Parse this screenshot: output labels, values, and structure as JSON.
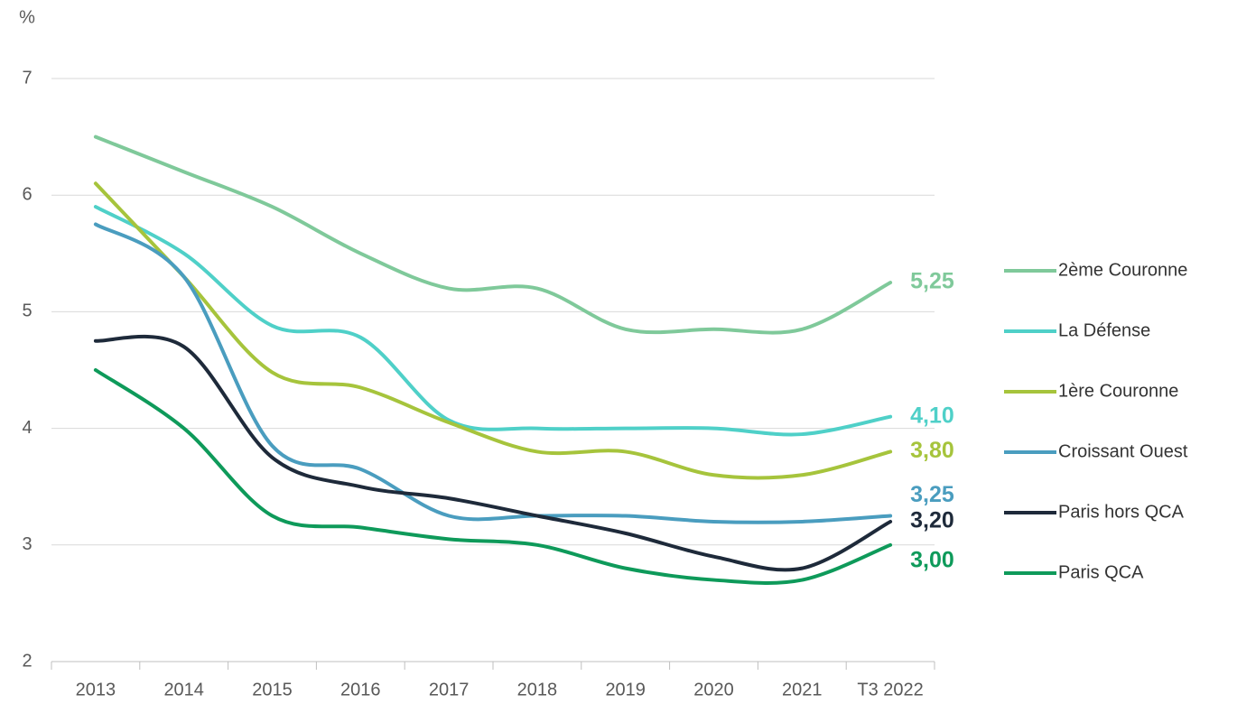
{
  "chart_data": {
    "type": "line",
    "y_unit": "%",
    "categories": [
      "2013",
      "2014",
      "2015",
      "2016",
      "2017",
      "2018",
      "2019",
      "2020",
      "2021",
      "T3 2022"
    ],
    "ylim": [
      2,
      7
    ],
    "yticks": [
      2,
      3,
      4,
      5,
      6,
      7
    ],
    "grid": true,
    "legend": "right",
    "series": [
      {
        "name": "2ème Couronne",
        "color": "#7fc99a",
        "values": [
          6.5,
          6.2,
          5.9,
          5.5,
          5.2,
          5.2,
          4.85,
          4.85,
          4.85,
          5.25
        ],
        "value_labels": [
          null,
          null,
          null,
          null,
          null,
          null,
          null,
          null,
          null,
          "5,25"
        ]
      },
      {
        "name": "La Défense",
        "color": "#4fd0c8",
        "values": [
          5.9,
          5.5,
          4.88,
          4.78,
          4.07,
          4.0,
          4.0,
          4.0,
          3.95,
          4.1
        ],
        "value_labels": [
          null,
          null,
          null,
          null,
          null,
          null,
          null,
          null,
          null,
          "4,10"
        ]
      },
      {
        "name": "1ère Couronne",
        "color": "#a6c43c",
        "values": [
          6.1,
          5.3,
          4.48,
          4.35,
          4.05,
          3.8,
          3.8,
          3.6,
          3.6,
          3.8
        ],
        "value_labels": [
          null,
          null,
          null,
          null,
          null,
          null,
          null,
          null,
          null,
          "3,80"
        ]
      },
      {
        "name": "Croissant Ouest",
        "color": "#4a9dbf",
        "values": [
          5.75,
          5.3,
          3.85,
          3.65,
          3.25,
          3.25,
          3.25,
          3.2,
          3.2,
          3.25
        ],
        "value_labels": [
          null,
          null,
          null,
          null,
          null,
          null,
          null,
          null,
          null,
          "3,25"
        ]
      },
      {
        "name": "Paris hors QCA",
        "color": "#1e2a3a",
        "values": [
          4.75,
          4.7,
          3.75,
          3.5,
          3.4,
          3.25,
          3.1,
          2.9,
          2.8,
          3.2
        ],
        "value_labels": [
          null,
          null,
          null,
          null,
          null,
          null,
          null,
          null,
          null,
          "3,20"
        ]
      },
      {
        "name": "Paris QCA",
        "color": "#0e9a5a",
        "values": [
          4.5,
          4.0,
          3.25,
          3.15,
          3.05,
          3.0,
          2.8,
          2.7,
          2.7,
          3.0
        ],
        "value_labels": [
          null,
          null,
          null,
          null,
          null,
          null,
          null,
          null,
          null,
          "3,00"
        ]
      }
    ]
  }
}
